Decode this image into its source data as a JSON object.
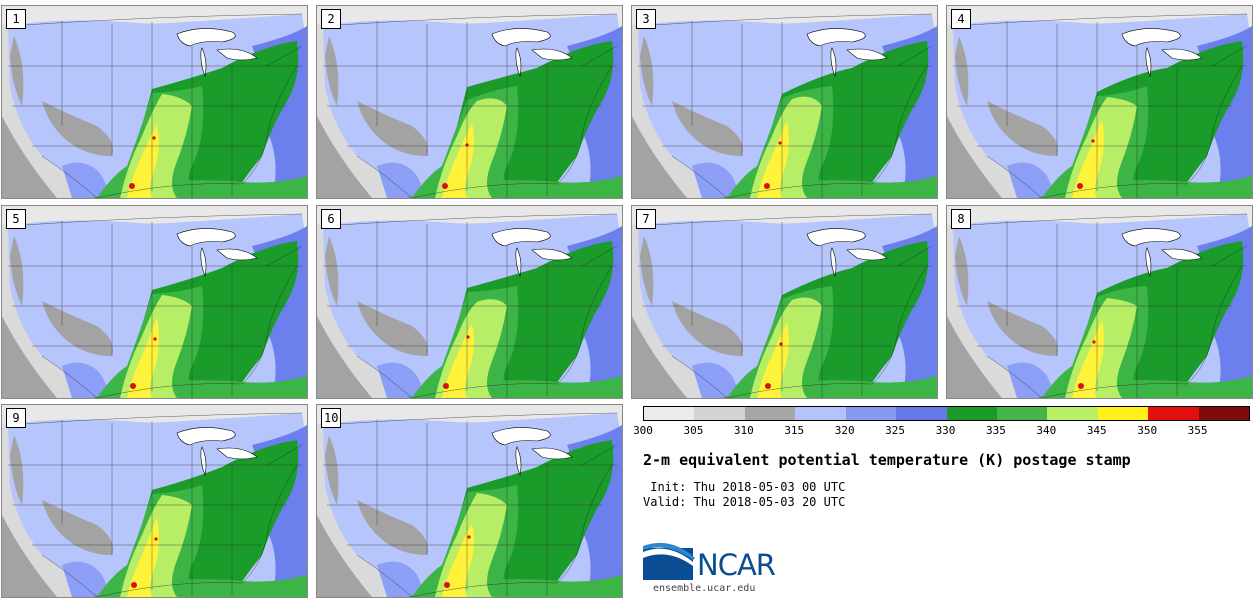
{
  "title": "2-m equivalent potential temperature (K) postage stamp",
  "init_label": " Init: Thu 2018-05-03 00 UTC",
  "valid_label": "Valid: Thu 2018-05-03 20 UTC",
  "site": "ensemble.ucar.edu",
  "logo_text": "NCAR",
  "members": [
    "1",
    "2",
    "3",
    "4",
    "5",
    "6",
    "7",
    "8",
    "9",
    "10"
  ],
  "colorbar": {
    "ticks": [
      "300",
      "305",
      "310",
      "315",
      "320",
      "325",
      "330",
      "335",
      "340",
      "345",
      "350",
      "355"
    ],
    "colors": [
      "#ececec",
      "#d3d3d3",
      "#a6a6a6",
      "#b4c3fa",
      "#8899f3",
      "#6478ea",
      "#1a9a27",
      "#45b54a",
      "#b9ef65",
      "#fff21c",
      "#e30e0e",
      "#7e0a0a"
    ]
  },
  "map_colors": {
    "ocean_west": "#dadada",
    "mountains": "#a3a3a3",
    "cool": "#b6c5fb",
    "cooler": "#8c9ef6",
    "atlantic": "#6b80ec",
    "green_dark": "#1b9b29",
    "green_mid": "#3cb446",
    "green_light": "#b7ee66",
    "yellow": "#fff23a",
    "red": "#d31313",
    "lakes": "#ffffff",
    "canada": "#e8e8e8"
  }
}
